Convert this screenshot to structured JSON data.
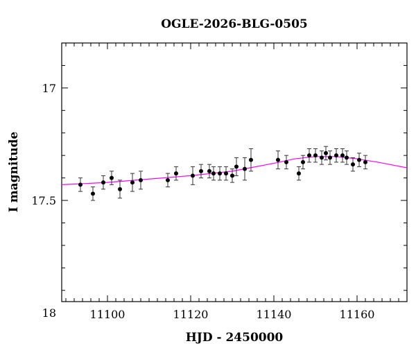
{
  "chart_data": {
    "type": "scatter",
    "title": "OGLE-2026-BLG-0505",
    "xlabel": "HJD - 2450000",
    "ylabel": "I magnitude",
    "xlim": [
      11089,
      11172
    ],
    "ylim": [
      17.95,
      16.8
    ],
    "y_inverted": true,
    "x_major_ticks": [
      11100,
      11120,
      11140,
      11160
    ],
    "x_tick_labels": [
      "11100",
      "11120",
      "11140",
      "11160"
    ],
    "x_minor_step": 2,
    "y_major_ticks": [
      17,
      17.5,
      18
    ],
    "y_tick_labels": [
      "17",
      "17.5",
      "18"
    ],
    "y_minor_step": 0.1,
    "grid": false,
    "colors": {
      "points": "#000000",
      "model": "#ff00ff",
      "frame": "#000000"
    },
    "series": [
      {
        "x": [
          11093.5,
          11096.5,
          11099,
          11101,
          11103,
          11106,
          11108,
          11114.5,
          11116.5,
          11120.5,
          11122.5,
          11124.5,
          11125.5,
          11127,
          11128.5,
          11130,
          11131,
          11133,
          11134.5,
          11141,
          11143,
          11146,
          11147,
          11148.5,
          11150,
          11151.5,
          11152.5,
          11153.5,
          11155,
          11156.5,
          11157.5,
          11159,
          11160.5,
          11162
        ],
        "y": [
          17.43,
          17.47,
          17.42,
          17.4,
          17.45,
          17.42,
          17.41,
          17.41,
          17.38,
          17.39,
          17.37,
          17.37,
          17.38,
          17.38,
          17.38,
          17.39,
          17.35,
          17.36,
          17.32,
          17.32,
          17.33,
          17.38,
          17.33,
          17.3,
          17.3,
          17.31,
          17.29,
          17.31,
          17.3,
          17.3,
          17.31,
          17.34,
          17.32,
          17.33
        ],
        "yerr": [
          0.03,
          0.03,
          0.03,
          0.03,
          0.04,
          0.04,
          0.04,
          0.03,
          0.03,
          0.04,
          0.03,
          0.03,
          0.03,
          0.03,
          0.03,
          0.03,
          0.04,
          0.05,
          0.05,
          0.04,
          0.03,
          0.03,
          0.03,
          0.03,
          0.03,
          0.03,
          0.03,
          0.03,
          0.03,
          0.03,
          0.03,
          0.03,
          0.03,
          0.03
        ]
      }
    ],
    "model": {
      "x": [
        11089,
        11100,
        11110,
        11120,
        11130,
        11140,
        11145,
        11150,
        11155,
        11160,
        11165,
        11172
      ],
      "y": [
        17.43,
        17.42,
        17.405,
        17.39,
        17.37,
        17.335,
        17.315,
        17.305,
        17.305,
        17.315,
        17.33,
        17.355
      ]
    }
  }
}
